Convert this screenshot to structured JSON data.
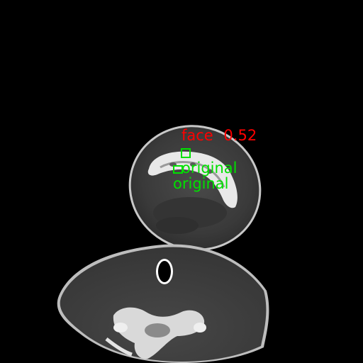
{
  "scan": {
    "modality_hint": "axial CT slice, grayscale"
  },
  "detection": {
    "label": "face",
    "score": "0.52",
    "color": "#ff0000"
  },
  "annotations": [
    {
      "label": "original",
      "color": "#00e000"
    },
    {
      "label": "original",
      "color": "#00e000"
    }
  ]
}
